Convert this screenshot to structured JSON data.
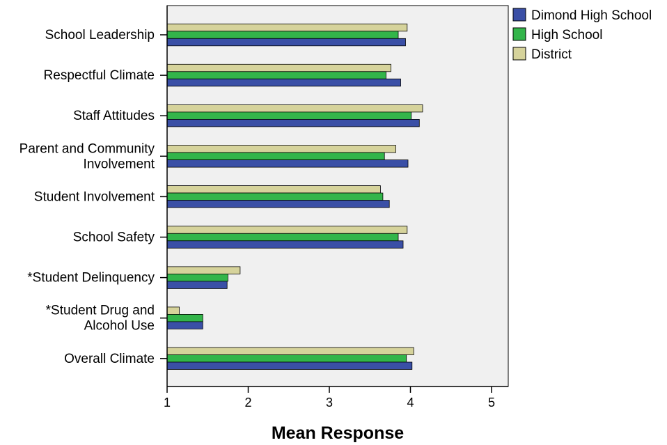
{
  "chart_data": {
    "type": "bar",
    "orientation": "horizontal",
    "categories": [
      [
        "School Leadership"
      ],
      [
        "Respectful Climate"
      ],
      [
        "Staff Attitudes"
      ],
      [
        "Parent and Community",
        "Involvement"
      ],
      [
        "Student Involvement"
      ],
      [
        "School Safety"
      ],
      [
        "*Student Delinquency"
      ],
      [
        "*Student Drug and",
        "Alcohol Use"
      ],
      [
        "Overall Climate"
      ]
    ],
    "series": [
      {
        "name": "District",
        "color": "#d6d39b",
        "values": [
          3.96,
          3.76,
          4.15,
          3.82,
          3.63,
          3.96,
          1.9,
          1.15,
          4.04
        ]
      },
      {
        "name": "High School",
        "color": "#33b54a",
        "values": [
          3.85,
          3.7,
          4.01,
          3.68,
          3.66,
          3.85,
          1.75,
          1.44,
          3.95
        ]
      },
      {
        "name": "Dimond High School",
        "color": "#3a4fa6",
        "values": [
          3.94,
          3.88,
          4.11,
          3.97,
          3.74,
          3.91,
          1.74,
          1.44,
          4.02
        ]
      }
    ],
    "legend_order": [
      "Dimond High School",
      "High School",
      "District"
    ],
    "legend_position": "right",
    "xlabel": "Mean Response",
    "xlim": [
      1,
      5.2
    ],
    "xticks": [
      1,
      2,
      3,
      4,
      5
    ],
    "plot_background": "#f0f0f0",
    "grid": false
  }
}
